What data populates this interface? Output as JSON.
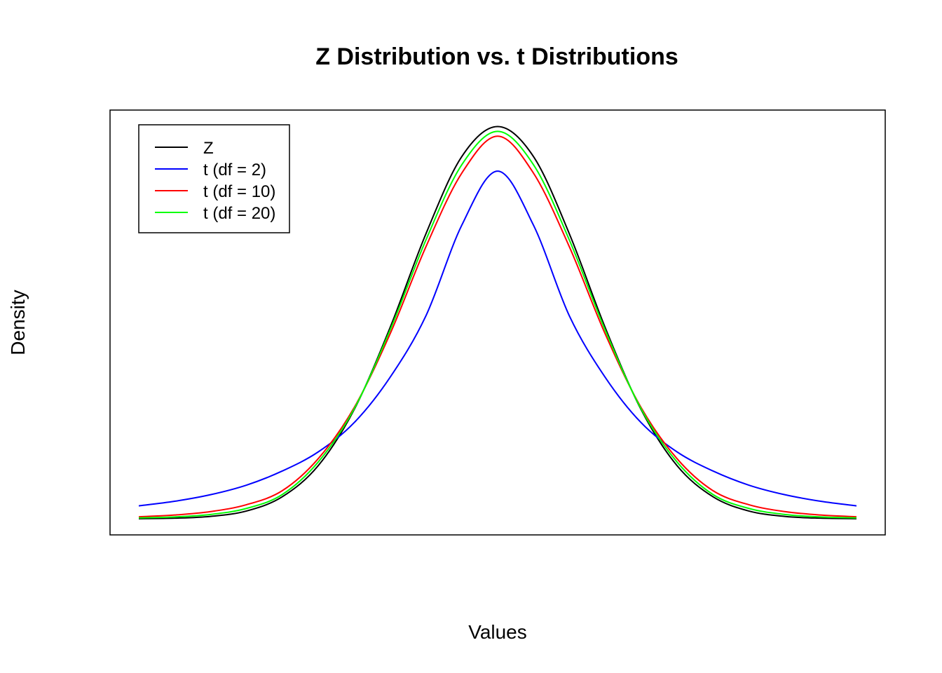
{
  "chart_data": {
    "type": "line",
    "title": "Z Distribution vs. t Distributions",
    "xlabel": "Values",
    "ylabel": "Density",
    "xlim": [
      -4,
      4
    ],
    "ylim": [
      0,
      0.4
    ],
    "axes_shown": false,
    "grid": false,
    "legend_position": "top-left",
    "x": [
      -4.0,
      -3.6,
      -3.2,
      -2.8,
      -2.4,
      -2.0,
      -1.6,
      -1.2,
      -0.8,
      -0.4,
      0.0,
      0.4,
      0.8,
      1.2,
      1.6,
      2.0,
      2.4,
      2.8,
      3.2,
      3.6,
      4.0
    ],
    "series": [
      {
        "name": "Z",
        "color": "#000000",
        "values": [
          0.0001,
          0.0006,
          0.0024,
          0.0079,
          0.0224,
          0.054,
          0.1109,
          0.1942,
          0.2897,
          0.3683,
          0.3989,
          0.3683,
          0.2897,
          0.1942,
          0.1109,
          0.054,
          0.0224,
          0.0079,
          0.0024,
          0.0006,
          0.0001
        ]
      },
      {
        "name": "t (df = 2)",
        "color": "#0000ff",
        "values": [
          0.0131,
          0.0178,
          0.0245,
          0.0342,
          0.0486,
          0.068,
          0.0977,
          0.1437,
          0.2063,
          0.2985,
          0.3536,
          0.2985,
          0.2063,
          0.1437,
          0.0977,
          0.068,
          0.0486,
          0.0342,
          0.0245,
          0.0178,
          0.0131
        ]
      },
      {
        "name": "t (df = 10)",
        "color": "#ff0000",
        "values": [
          0.002,
          0.0038,
          0.0073,
          0.0143,
          0.0286,
          0.0611,
          0.1129,
          0.1878,
          0.2765,
          0.3515,
          0.3891,
          0.3515,
          0.2765,
          0.1878,
          0.1129,
          0.0611,
          0.0286,
          0.0143,
          0.0073,
          0.0038,
          0.002
        ]
      },
      {
        "name": "t (df = 20)",
        "color": "#00ff00",
        "values": [
          0.0009,
          0.0019,
          0.0044,
          0.0105,
          0.0247,
          0.0577,
          0.1117,
          0.1916,
          0.2834,
          0.36,
          0.394,
          0.36,
          0.2834,
          0.1916,
          0.1117,
          0.0577,
          0.0247,
          0.0105,
          0.0044,
          0.0019,
          0.0009
        ]
      }
    ]
  }
}
